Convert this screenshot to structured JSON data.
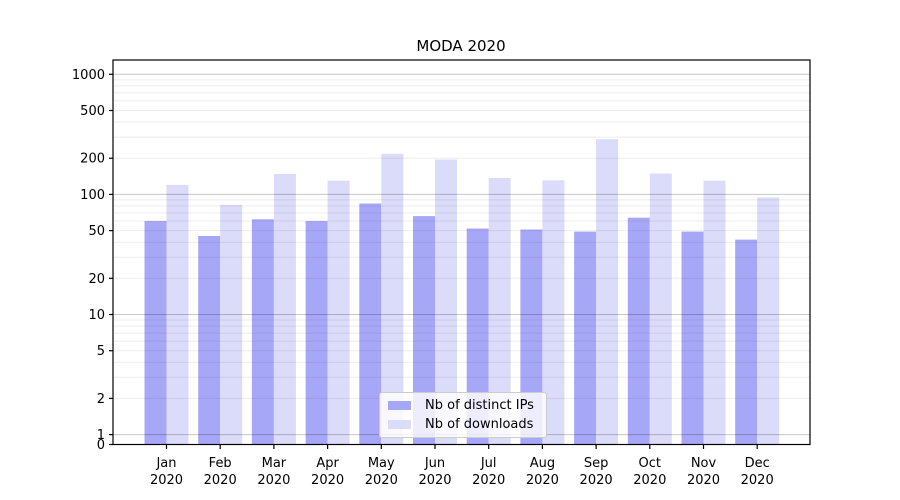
{
  "title": "MODA 2020",
  "chart_data": {
    "type": "bar",
    "title": "MODA 2020",
    "yscale": "log",
    "grid": true,
    "legend_position": "lower center",
    "categories": [
      "Jan",
      "Feb",
      "Mar",
      "Apr",
      "May",
      "Jun",
      "Jul",
      "Aug",
      "Sep",
      "Oct",
      "Nov",
      "Dec"
    ],
    "year_label": "2020",
    "series": [
      {
        "name": "Nb of distinct IPs",
        "color": "#a7a7f7",
        "values": [
          60,
          45,
          62,
          60,
          84,
          66,
          52,
          51,
          49,
          64,
          49,
          42
        ]
      },
      {
        "name": "Nb of downloads",
        "color": "#dbdbfa",
        "values": [
          120,
          82,
          148,
          130,
          218,
          195,
          137,
          131,
          288,
          149,
          130,
          94
        ]
      }
    ],
    "yticks": [
      1000,
      500,
      200,
      100,
      50,
      20,
      10,
      5,
      2,
      1,
      0
    ],
    "ytick_labels": [
      "1000",
      "500",
      "200",
      "100",
      "50",
      "20",
      "10",
      "5",
      "2",
      "1",
      "0"
    ],
    "ylim_top": 1340
  },
  "colors": {
    "major_grid": "rgba(0,0,0,0.22)",
    "minor_grid": "rgba(0,0,0,0.07)",
    "spine": "#000000",
    "text": "#000000",
    "legend_bg": "rgba(255,255,255,0.8)",
    "legend_border": "#cccccc"
  }
}
